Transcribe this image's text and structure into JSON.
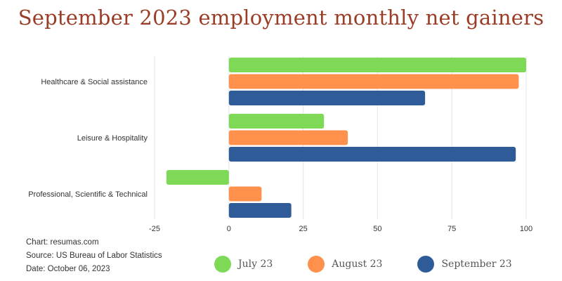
{
  "chart_data": {
    "type": "bar",
    "orientation": "horizontal",
    "title": "September 2023 employment monthly net gainers",
    "categories": [
      "Healthcare & Social assistance",
      "Leisure & Hospitality",
      "Professional, Scientific & Technical"
    ],
    "series": [
      {
        "name": "July 23",
        "color": "#7ed957",
        "values": [
          100,
          32,
          -21
        ]
      },
      {
        "name": "August 23",
        "color": "#ff914d",
        "values": [
          97.5,
          40,
          11
        ]
      },
      {
        "name": "September 23",
        "color": "#2f5c99",
        "values": [
          66,
          96.5,
          21
        ]
      }
    ],
    "xlim": [
      -25,
      100
    ],
    "xticks": [
      -25,
      0,
      25,
      50,
      75,
      100
    ],
    "grid": true,
    "legend": "bottom"
  },
  "footer": {
    "line1": "Chart: resumas.com",
    "line2": "Source: US Bureau of Labor Statistics",
    "line3": "Date: October 06, 2023"
  }
}
